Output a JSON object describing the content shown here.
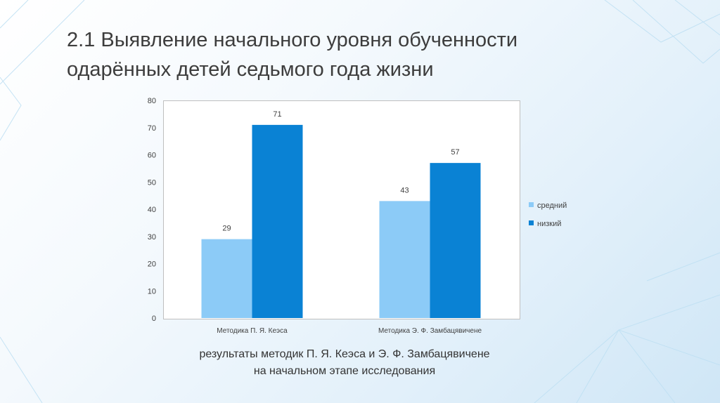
{
  "slide": {
    "title_line1": "2.1 Выявление начального уровня обученности",
    "title_line2": "одарённых детей седьмого года жизни",
    "caption_line1": "результаты методик П. Я. Кеэса и Э. Ф. Замбацявичене",
    "caption_line2": "на начальном этапе исследования"
  },
  "chart_data": {
    "type": "bar",
    "categories": [
      "Методика П. Я. Кеэса",
      "Методика Э. Ф. Замбацявичене"
    ],
    "series": [
      {
        "name": "средний",
        "values": [
          29,
          43
        ],
        "color": "#8ccbf7"
      },
      {
        "name": "низкий",
        "values": [
          71,
          57
        ],
        "color": "#0a82d4"
      }
    ],
    "yticks": [
      0,
      10,
      20,
      30,
      40,
      50,
      60,
      70,
      80
    ],
    "ylim": [
      0,
      80
    ],
    "grid": false,
    "legend": "right",
    "data_labels": true
  }
}
